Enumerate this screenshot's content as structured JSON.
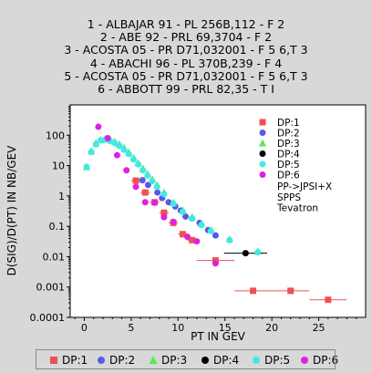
{
  "references": [
    "1 - ALBAJAR 91 - PL 256B,112 - F 2",
    "2 - ABE 92 - PRL 69,3704 - F 2",
    "3 - ACOSTA 05 - PR D71,032001 - F 5 6,T 3",
    "4 - ABACHI 96 - PL 370B,239 - F 4",
    "5 - ACOSTA 05 - PR D71,032001 - F 5 6,T 3",
    "6 - ABBOTT 99 - PRL 82,35 - T I"
  ],
  "chart_data": {
    "type": "scatter",
    "xlabel": "PT IN GEV",
    "ylabel": "D(SIG)/D(PT) IN NB/GEV",
    "xlim": [
      -1.5,
      30
    ],
    "ylim": [
      0.0001,
      1000
    ],
    "yscale": "log",
    "xticks": [
      "0",
      "5",
      "10",
      "15",
      "20",
      "25"
    ],
    "yticks": [
      "0.0001",
      "0.001",
      "0.01",
      "0.1",
      "1",
      "10",
      "100"
    ],
    "grid": false,
    "annotations": [
      "PP->JPSI+X",
      "SPPS",
      "Tevatron"
    ],
    "legend_placement": "top-right inside plot and bottom strip",
    "series": [
      {
        "name": "DP:1",
        "color": "#f05050",
        "marker": "square",
        "points": [
          {
            "x": 5.5,
            "y": 3.2,
            "xerr": 0.5
          },
          {
            "x": 6.5,
            "y": 1.3,
            "xerr": 0.5
          },
          {
            "x": 7.5,
            "y": 0.62,
            "xerr": 0.5
          },
          {
            "x": 8.5,
            "y": 0.28,
            "xerr": 0.5
          },
          {
            "x": 9.5,
            "y": 0.13,
            "xerr": 0.5
          },
          {
            "x": 10.5,
            "y": 0.055,
            "xerr": 0.5
          },
          {
            "x": 11.5,
            "y": 0.035,
            "xerr": 0.5
          },
          {
            "x": 14.0,
            "y": 0.0075,
            "xerr": 2.0
          },
          {
            "x": 18.0,
            "y": 0.00075,
            "xerr": 2.0
          },
          {
            "x": 22.0,
            "y": 0.00075,
            "xerr": 2.0
          },
          {
            "x": 26.0,
            "y": 0.00038,
            "xerr": 2.0
          }
        ]
      },
      {
        "name": "DP:2",
        "color": "#5858e8",
        "marker": "circle",
        "points": [
          {
            "x": 6.2,
            "y": 3.3
          },
          {
            "x": 6.8,
            "y": 2.3
          },
          {
            "x": 7.8,
            "y": 1.3
          },
          {
            "x": 8.3,
            "y": 0.85
          },
          {
            "x": 9.0,
            "y": 0.62
          },
          {
            "x": 9.7,
            "y": 0.45
          },
          {
            "x": 10.3,
            "y": 0.33
          },
          {
            "x": 10.8,
            "y": 0.21
          },
          {
            "x": 11.5,
            "y": 0.18
          },
          {
            "x": 12.3,
            "y": 0.13
          },
          {
            "x": 13.2,
            "y": 0.075
          },
          {
            "x": 14.0,
            "y": 0.05
          }
        ]
      },
      {
        "name": "DP:3",
        "color": "#58e858",
        "marker": "triangle",
        "points": [
          {
            "x": 0.25,
            "y": 9
          },
          {
            "x": 0.75,
            "y": 30
          },
          {
            "x": 1.25,
            "y": 55
          },
          {
            "x": 1.75,
            "y": 70
          },
          {
            "x": 2.25,
            "y": 75
          },
          {
            "x": 2.75,
            "y": 72
          },
          {
            "x": 3.25,
            "y": 62
          },
          {
            "x": 3.75,
            "y": 50
          },
          {
            "x": 4.25,
            "y": 38
          },
          {
            "x": 4.75,
            "y": 27
          },
          {
            "x": 5.25,
            "y": 18
          },
          {
            "x": 5.75,
            "y": 12
          },
          {
            "x": 6.25,
            "y": 8
          },
          {
            "x": 6.75,
            "y": 5.2
          },
          {
            "x": 7.25,
            "y": 3.5
          },
          {
            "x": 7.75,
            "y": 2.3
          },
          {
            "x": 8.5,
            "y": 1.3
          },
          {
            "x": 9.5,
            "y": 0.6
          },
          {
            "x": 10.5,
            "y": 0.33
          },
          {
            "x": 11.5,
            "y": 0.2
          },
          {
            "x": 12.5,
            "y": 0.12
          },
          {
            "x": 13.5,
            "y": 0.075
          },
          {
            "x": 15.5,
            "y": 0.037
          },
          {
            "x": 18.5,
            "y": 0.015
          }
        ]
      },
      {
        "name": "DP:4",
        "color": "#000000",
        "marker": "circle",
        "points": [
          {
            "x": 17.2,
            "y": 0.013,
            "xerr": 2.3
          }
        ]
      },
      {
        "name": "DP:5",
        "color": "#40e8e8",
        "marker": "circle",
        "points": [
          {
            "x": 0.25,
            "y": 9
          },
          {
            "x": 0.75,
            "y": 28
          },
          {
            "x": 1.25,
            "y": 50
          },
          {
            "x": 1.75,
            "y": 68
          },
          {
            "x": 2.25,
            "y": 72
          },
          {
            "x": 2.75,
            "y": 65
          },
          {
            "x": 3.25,
            "y": 55
          },
          {
            "x": 3.75,
            "y": 45
          },
          {
            "x": 4.25,
            "y": 33
          },
          {
            "x": 4.75,
            "y": 24
          },
          {
            "x": 5.25,
            "y": 16
          },
          {
            "x": 5.75,
            "y": 11
          },
          {
            "x": 6.25,
            "y": 7
          },
          {
            "x": 6.75,
            "y": 4.7
          },
          {
            "x": 7.25,
            "y": 3.1
          },
          {
            "x": 7.75,
            "y": 2.0
          },
          {
            "x": 8.5,
            "y": 1.15
          },
          {
            "x": 9.5,
            "y": 0.55
          },
          {
            "x": 10.5,
            "y": 0.3
          },
          {
            "x": 11.5,
            "y": 0.18
          },
          {
            "x": 12.5,
            "y": 0.11
          },
          {
            "x": 13.5,
            "y": 0.07
          },
          {
            "x": 15.5,
            "y": 0.035
          },
          {
            "x": 18.5,
            "y": 0.014
          }
        ]
      },
      {
        "name": "DP:6",
        "color": "#e020e0",
        "marker": "circle",
        "points": [
          {
            "x": 1.5,
            "y": 190
          },
          {
            "x": 2.5,
            "y": 80
          },
          {
            "x": 3.5,
            "y": 22
          },
          {
            "x": 4.5,
            "y": 7
          },
          {
            "x": 5.5,
            "y": 2.0
          },
          {
            "x": 6.5,
            "y": 0.62
          },
          {
            "x": 7.5,
            "y": 0.6
          },
          {
            "x": 8.5,
            "y": 0.2
          },
          {
            "x": 9.5,
            "y": 0.14
          },
          {
            "x": 11.0,
            "y": 0.045
          },
          {
            "x": 12.0,
            "y": 0.032
          },
          {
            "x": 14.0,
            "y": 0.006
          }
        ]
      }
    ]
  }
}
